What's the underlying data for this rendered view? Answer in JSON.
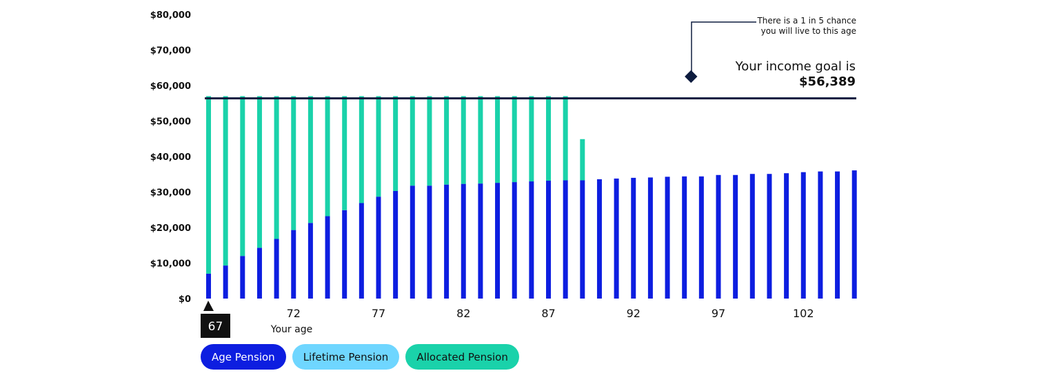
{
  "chart_data": {
    "type": "bar",
    "stacked": true,
    "xlabel": "Your age",
    "ylabel": "",
    "ylim": [
      0,
      80000
    ],
    "yticks": [
      "$0",
      "$10,000",
      "$20,000",
      "$30,000",
      "$40,000",
      "$50,000",
      "$60,000",
      "$70,000",
      "$80,000"
    ],
    "x": [
      67,
      68,
      69,
      70,
      71,
      72,
      73,
      74,
      75,
      76,
      77,
      78,
      79,
      80,
      81,
      82,
      83,
      84,
      85,
      86,
      87,
      88,
      89,
      90,
      91,
      92,
      93,
      94,
      95,
      96,
      97,
      98,
      99,
      100,
      101,
      102,
      103,
      104,
      105
    ],
    "xtick_labels": [
      "72",
      "77",
      "82",
      "87",
      "92",
      "97",
      "102"
    ],
    "series": [
      {
        "name": "Age Pension",
        "color": "#0d1ee0",
        "values": [
          7000,
          9300,
          12000,
          14300,
          16800,
          19300,
          21300,
          23200,
          24900,
          26900,
          28700,
          30300,
          31800,
          31800,
          32100,
          32300,
          32400,
          32600,
          32800,
          33000,
          33200,
          33300,
          33300,
          33600,
          33800,
          34000,
          34100,
          34300,
          34400,
          34400,
          34800,
          34800,
          35100,
          35100,
          35300,
          35600,
          35800,
          35800,
          36100
        ]
      },
      {
        "name": "Lifetime Pension",
        "color": "#6fd6ff",
        "values": [
          0,
          0,
          0,
          0,
          0,
          0,
          0,
          0,
          0,
          0,
          0,
          0,
          0,
          0,
          0,
          0,
          0,
          0,
          0,
          0,
          0,
          0,
          0,
          0,
          0,
          0,
          0,
          0,
          0,
          0,
          0,
          0,
          0,
          0,
          0,
          0,
          0,
          0,
          0
        ]
      },
      {
        "name": "Allocated Pension",
        "color": "#1ad2aa",
        "values": [
          50000,
          47700,
          45000,
          42700,
          40200,
          37700,
          35700,
          33800,
          32100,
          30100,
          28300,
          26700,
          25200,
          25200,
          24900,
          24700,
          24600,
          24400,
          24200,
          24000,
          23800,
          23700,
          11600,
          0,
          0,
          0,
          0,
          0,
          0,
          0,
          0,
          0,
          0,
          0,
          0,
          0,
          0,
          0,
          0
        ]
      }
    ],
    "income_goal": {
      "value": 56389,
      "label": "Your income goal is",
      "value_label": "$56,389",
      "color": "#0d1b3e"
    },
    "annotation": {
      "line1": "There is a 1 in 5 chance",
      "line2": "you will live to this age"
    },
    "current_age": "67"
  },
  "legend": [
    {
      "label": "Age Pension",
      "bg": "#0d1ee0",
      "fg": "#ffffff"
    },
    {
      "label": "Lifetime Pension",
      "bg": "#6fd6ff",
      "fg": "#111111"
    },
    {
      "label": "Allocated Pension",
      "bg": "#1ad2aa",
      "fg": "#111111"
    }
  ]
}
